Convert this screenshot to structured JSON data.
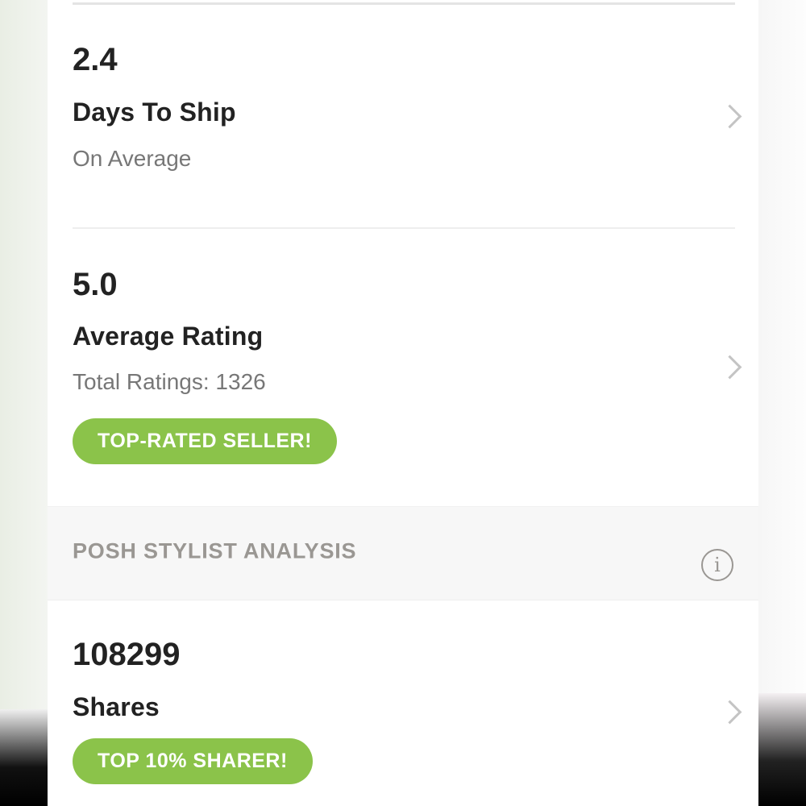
{
  "stats": [
    {
      "value": "2.4",
      "title": "Days To Ship",
      "subtitle": "On Average"
    },
    {
      "value": "5.0",
      "title": "Average Rating",
      "subtitle": "Total Ratings: 1326",
      "badge": "TOP-RATED SELLER!"
    }
  ],
  "section": {
    "title": "POSH STYLIST ANALYSIS",
    "icon": "info-icon",
    "items": [
      {
        "value": "108299",
        "title": "Shares",
        "badge": "TOP 10% SHARER!"
      }
    ]
  },
  "colors": {
    "badge": "#8bc34a",
    "section_bg": "#f7f7f7"
  }
}
